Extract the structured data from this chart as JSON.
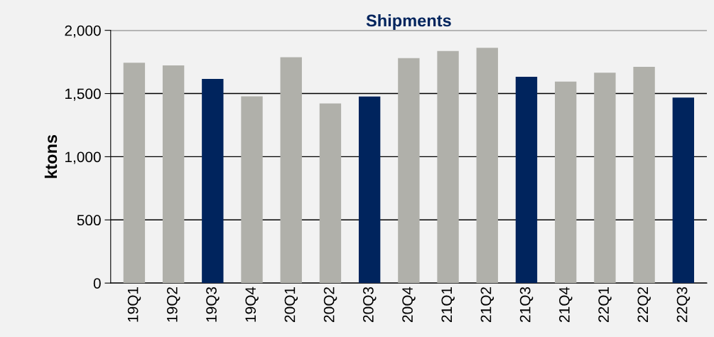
{
  "chart_data": {
    "type": "bar",
    "title": "Shipments",
    "ylabel": "ktons",
    "categories": [
      "19Q1",
      "19Q2",
      "19Q3",
      "19Q4",
      "20Q1",
      "20Q2",
      "20Q3",
      "20Q4",
      "21Q1",
      "21Q2",
      "21Q3",
      "21Q4",
      "22Q1",
      "22Q2",
      "22Q3"
    ],
    "values": [
      1744,
      1722,
      1615,
      1478,
      1787,
      1421,
      1476,
      1780,
      1837,
      1862,
      1632,
      1595,
      1665,
      1711,
      1468
    ],
    "colors": [
      "#b0b0aa",
      "#b0b0aa",
      "#00245d",
      "#b0b0aa",
      "#b0b0aa",
      "#b0b0aa",
      "#00245d",
      "#b0b0aa",
      "#b0b0aa",
      "#b0b0aa",
      "#00245d",
      "#b0b0aa",
      "#b0b0aa",
      "#b0b0aa",
      "#00245d"
    ],
    "ylim": [
      0,
      2000
    ],
    "yticks": [
      {
        "value": 0,
        "label": "0"
      },
      {
        "value": 500,
        "label": "500"
      },
      {
        "value": 1000,
        "label": "1,000"
      },
      {
        "value": 1500,
        "label": "1,500"
      },
      {
        "value": 2000,
        "label": "2,000"
      }
    ],
    "grid": "y"
  }
}
